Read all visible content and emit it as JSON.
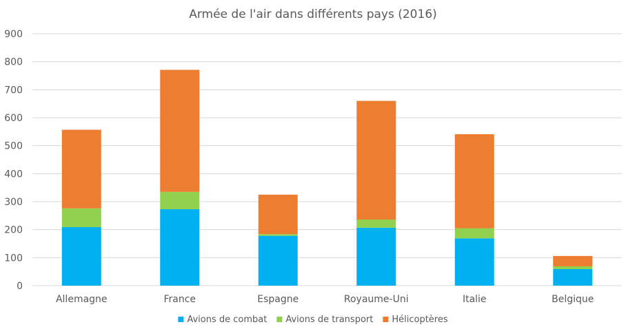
{
  "chart_data": {
    "type": "bar",
    "stacked": true,
    "title": "Armée de l'air dans différents pays (2016)",
    "xlabel": "",
    "ylabel": "",
    "ylim": [
      0,
      900
    ],
    "yticks": [
      0,
      100,
      200,
      300,
      400,
      500,
      600,
      700,
      800,
      900
    ],
    "grid": true,
    "legend": "bottom",
    "categories": [
      "Allemagne",
      "France",
      "Espagne",
      "Royaume-Uni",
      "Italie",
      "Belgique"
    ],
    "series": [
      {
        "name": "Avions de combat",
        "color": "#00b0f0",
        "values": [
          209,
          273,
          178,
          207,
          169,
          59
        ]
      },
      {
        "name": "Avions de transport",
        "color": "#92d050",
        "values": [
          67,
          62,
          6,
          29,
          36,
          10
        ]
      },
      {
        "name": "Hélicoptères",
        "color": "#ed7d31",
        "values": [
          281,
          436,
          141,
          424,
          336,
          37
        ]
      }
    ]
  }
}
